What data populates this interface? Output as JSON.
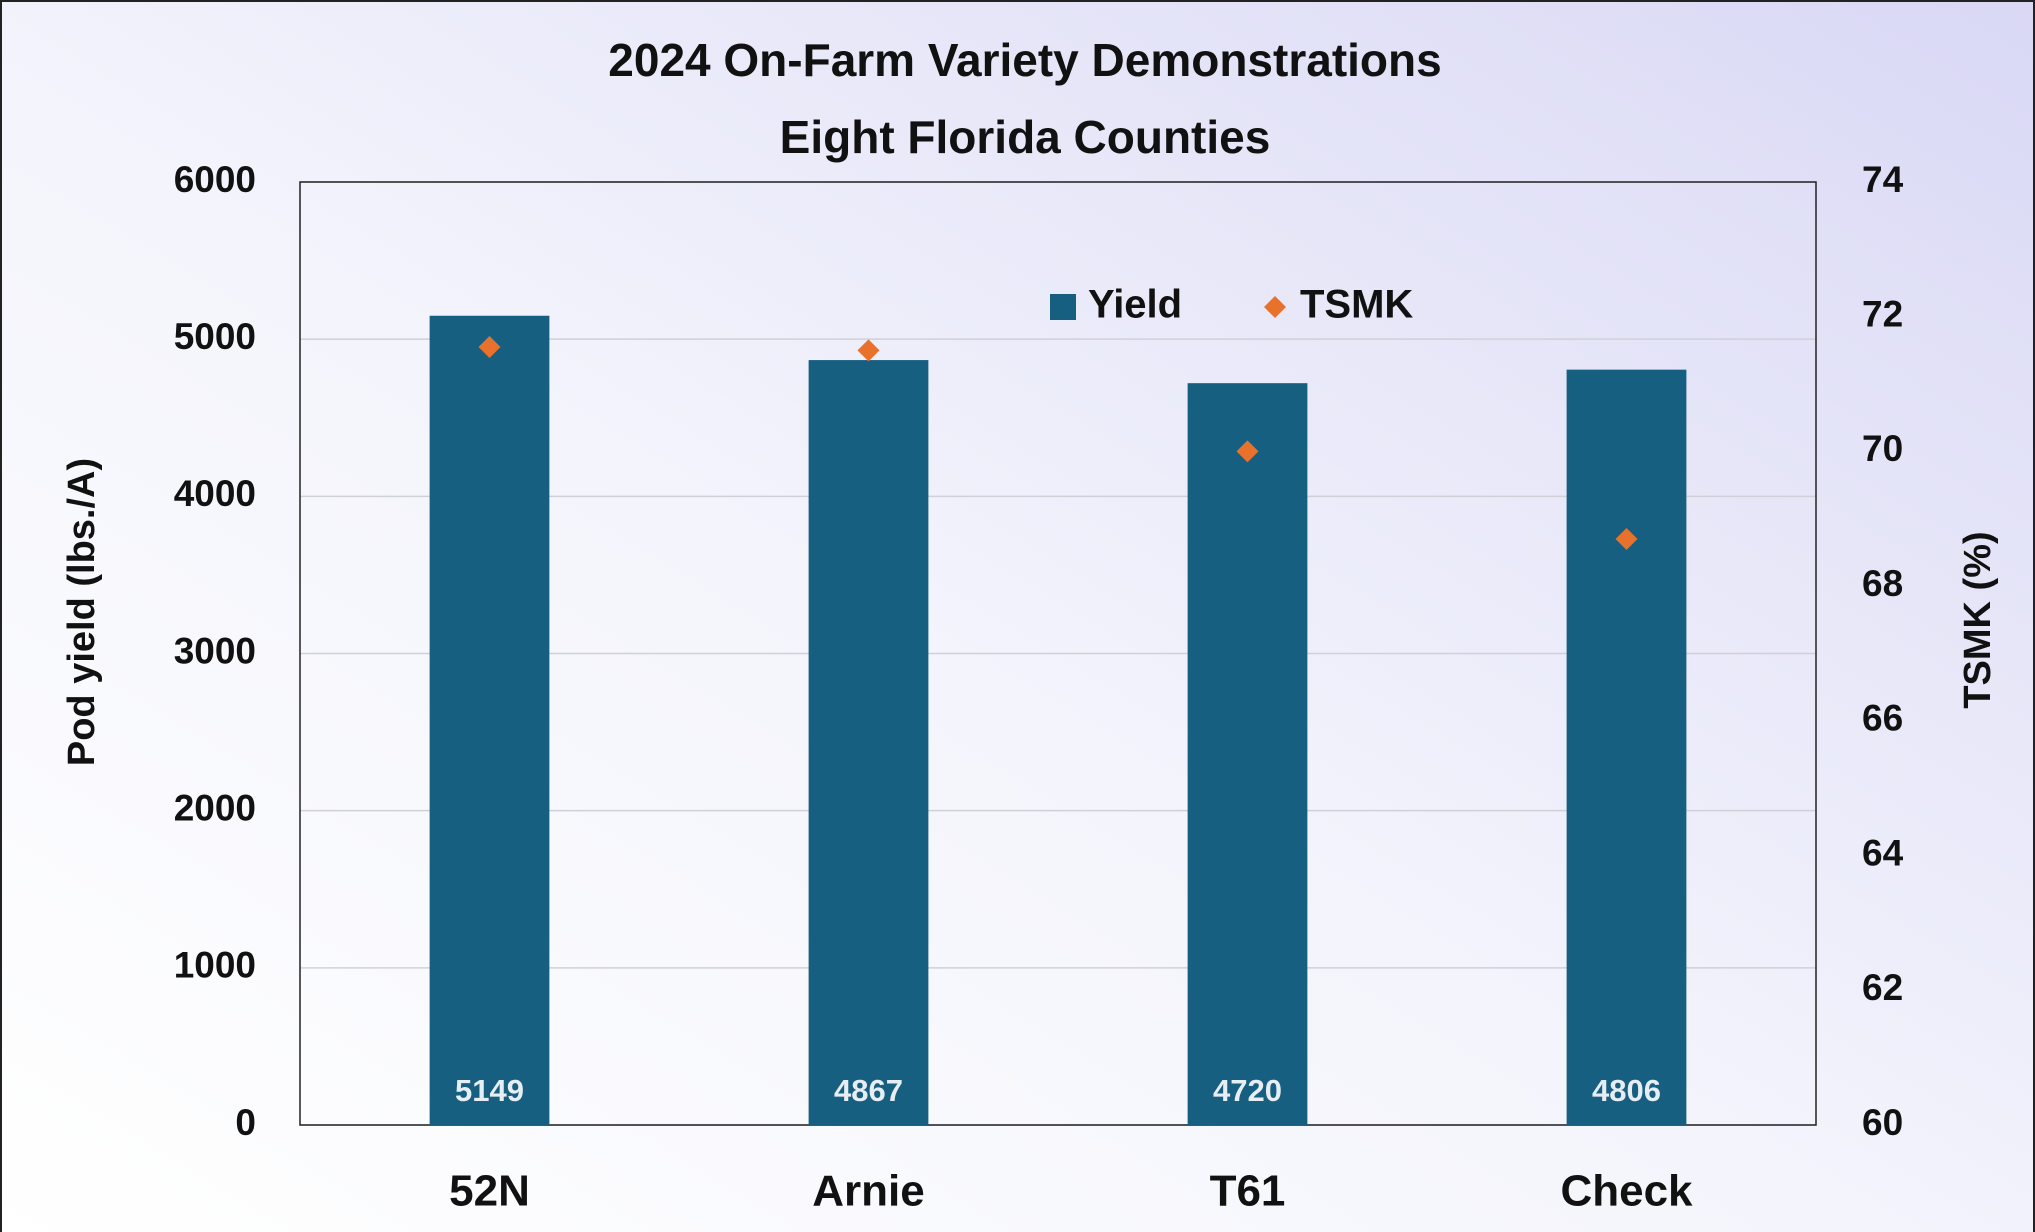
{
  "chart_data": {
    "type": "bar",
    "title": "2024 On-Farm Variety Demonstrations",
    "subtitle": "Eight Florida Counties",
    "categories": [
      "52N",
      "Arnie",
      "T61",
      "Check"
    ],
    "series": [
      {
        "name": "Yield",
        "color": "#175f80",
        "values": [
          5149,
          4867,
          4720,
          4806
        ]
      },
      {
        "name": "TSMK",
        "color": "#e8712b",
        "axis": "y2",
        "type": "scatter",
        "values": [
          71.55,
          71.5,
          70.0,
          68.7
        ]
      }
    ],
    "y_label": "Pod yield (lbs./A)",
    "y2_label": "TSMK (%)",
    "ylim": [
      0,
      6000
    ],
    "yticks": [
      0,
      1000,
      2000,
      3000,
      4000,
      5000,
      6000
    ],
    "y2lim": [
      60,
      74
    ],
    "y2ticks": [
      60,
      62,
      64,
      66,
      68,
      70,
      72,
      74
    ],
    "grid": true,
    "legend": "top"
  }
}
